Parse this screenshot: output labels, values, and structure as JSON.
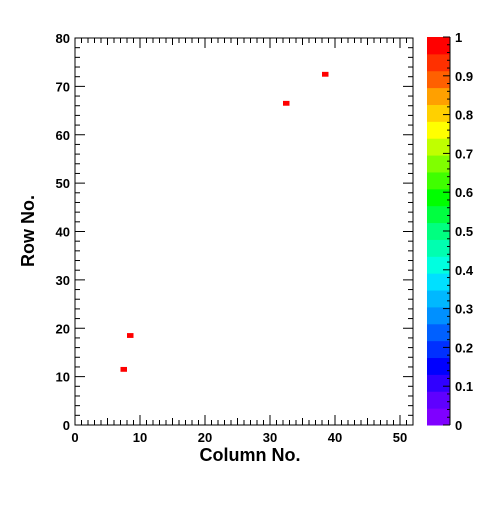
{
  "chart_data": {
    "type": "heatmap",
    "title": "",
    "xlabel": "Column No.",
    "ylabel": "Row No.",
    "xlim": [
      0,
      52
    ],
    "ylim": [
      0,
      80
    ],
    "x_ticks": [
      0,
      10,
      20,
      30,
      40,
      50
    ],
    "y_ticks": [
      0,
      10,
      20,
      30,
      40,
      50,
      60,
      70,
      80
    ],
    "x_tick_labels": [
      "0",
      "10",
      "20",
      "30",
      "40",
      "50"
    ],
    "y_tick_labels": [
      "0",
      "10",
      "20",
      "30",
      "40",
      "50",
      "60",
      "70",
      "80"
    ],
    "grid": false,
    "colorbar": {
      "range": [
        0,
        1
      ],
      "ticks": [
        0,
        0.1,
        0.2,
        0.3,
        0.4,
        0.5,
        0.6,
        0.7,
        0.8,
        0.9,
        1
      ],
      "tick_labels": [
        "0",
        "0.1",
        "0.2",
        "0.3",
        "0.4",
        "0.5",
        "0.6",
        "0.7",
        "0.8",
        "0.9",
        "1"
      ],
      "colors": [
        "#7f00ff",
        "#5f00ff",
        "#3000ff",
        "#0000ff",
        "#0030ff",
        "#0060ff",
        "#0090ff",
        "#00b8ff",
        "#00e0ff",
        "#00ffe0",
        "#00ffb0",
        "#00ff80",
        "#00ff40",
        "#00ff00",
        "#40ff00",
        "#80ff00",
        "#c0ff00",
        "#ffff00",
        "#ffd000",
        "#ffa000",
        "#ff6000",
        "#ff3000",
        "#ff0000"
      ]
    },
    "cells": [
      {
        "col": 7,
        "row": 11,
        "value": 1
      },
      {
        "col": 8,
        "row": 18,
        "value": 1
      },
      {
        "col": 32,
        "row": 66,
        "value": 1
      },
      {
        "col": 38,
        "row": 72,
        "value": 1
      }
    ]
  }
}
